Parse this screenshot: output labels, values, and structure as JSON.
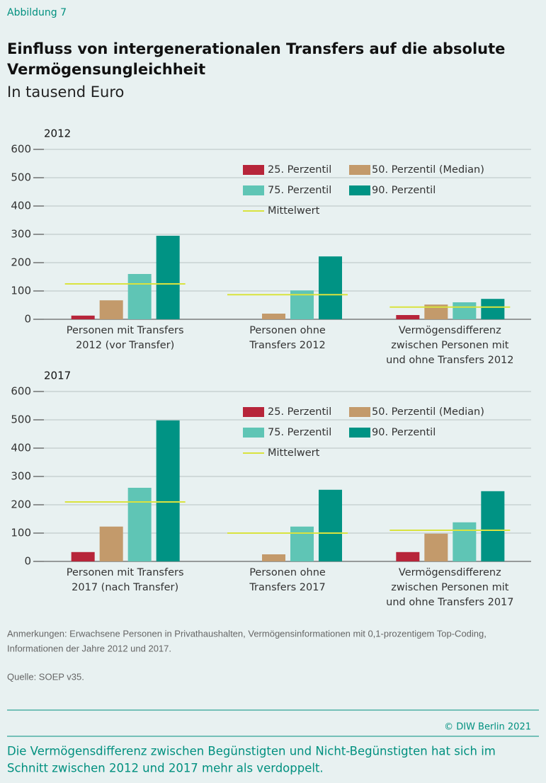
{
  "header": {
    "label": "Abbildung 7",
    "title": [
      "Einfluss von intergenerationalen Transfers auf die absolute",
      "Vermögensungleichheit"
    ],
    "subtitle": "In tausend Euro"
  },
  "chart_data": [
    {
      "type": "bar",
      "title": "2012",
      "categories": [
        [
          "Personen mit Transfers",
          "2012 (vor Transfer)"
        ],
        [
          "Personen ohne",
          "Transfers 2012"
        ],
        [
          "Vermögensdifferenz",
          "zwischen Personen mit",
          "und ohne Transfers 2012"
        ]
      ],
      "series": [
        {
          "name": "25. Perzentil",
          "color": "#b7253a",
          "values": [
            13,
            null,
            15
          ]
        },
        {
          "name": "50. Perzentil (Median)",
          "color": "#c39a6b",
          "values": [
            67,
            20,
            52
          ]
        },
        {
          "name": "75. Perzentil",
          "color": "#5fc5b5",
          "values": [
            160,
            102,
            60
          ]
        },
        {
          "name": "90. Perzentil",
          "color": "#009384",
          "values": [
            295,
            222,
            72
          ]
        },
        {
          "name": "Mittelwert",
          "color": "#d9e33f",
          "mark": "hline",
          "values": [
            125,
            87,
            43
          ]
        }
      ],
      "ylim": [
        0,
        600
      ],
      "yticks": [
        0,
        100,
        200,
        300,
        400,
        500,
        600
      ],
      "grid": true,
      "legend": "top-right"
    },
    {
      "type": "bar",
      "title": "2017",
      "categories": [
        [
          "Personen mit Transfers",
          "2017 (nach Transfer)"
        ],
        [
          "Personen ohne",
          "Transfers 2017"
        ],
        [
          "Vermögensdifferenz",
          "zwischen Personen mit",
          "und ohne Transfers 2017"
        ]
      ],
      "series": [
        {
          "name": "25. Perzentil",
          "color": "#b7253a",
          "values": [
            33,
            null,
            33
          ]
        },
        {
          "name": "50. Perzentil (Median)",
          "color": "#c39a6b",
          "values": [
            123,
            25,
            98
          ]
        },
        {
          "name": "75. Perzentil",
          "color": "#5fc5b5",
          "values": [
            260,
            123,
            138
          ]
        },
        {
          "name": "90. Perzentil",
          "color": "#009384",
          "values": [
            498,
            253,
            248
          ]
        },
        {
          "name": "Mittelwert",
          "color": "#d9e33f",
          "mark": "hline",
          "values": [
            210,
            100,
            110
          ]
        }
      ],
      "ylim": [
        0,
        600
      ],
      "yticks": [
        0,
        100,
        200,
        300,
        400,
        500,
        600
      ],
      "grid": true,
      "legend": "top-right"
    }
  ],
  "notes": {
    "remarks": [
      "Anmerkungen: Erwachsene Personen in Privathaushalten, Vermögensinformationen mit 0,1-prozentigem Top-Coding,",
      "Informationen der Jahre 2012 und 2017."
    ],
    "source": "Quelle: SOEP v35.",
    "copyright": "© DIW Berlin 2021"
  },
  "footer": [
    "Die Vermögensdifferenz zwischen Begünstigten und Nicht-Begünstigten hat sich im",
    "Schnitt zwischen 2012 und 2017 mehr als verdoppelt."
  ]
}
